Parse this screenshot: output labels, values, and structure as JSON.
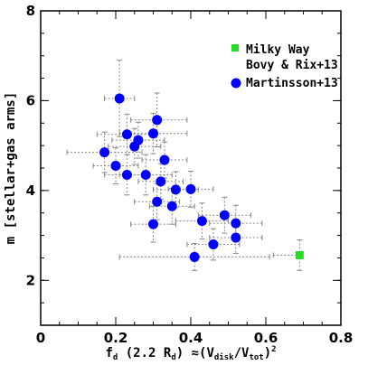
{
  "chart_data": {
    "type": "scatter",
    "xlim": [
      0,
      0.8
    ],
    "ylim": [
      1,
      8
    ],
    "x_ticks": [
      "0",
      "0.2",
      "0.4",
      "0.6",
      "0.8"
    ],
    "y_ticks": [
      "2",
      "4",
      "6",
      "8"
    ],
    "xlabel": {
      "prefix": "f",
      "prefix_sub": "d",
      "mid": " (2.2 R",
      "mid_sub": "d",
      "mid_end": ") ≈(V",
      "v1_sub": "disk",
      "slash": "/V",
      "v2_sub": "tot",
      "end": ")",
      "end_sup": "2"
    },
    "ylabel": "m [stellar+gas arms]",
    "grid": false,
    "legend_position": "top-right",
    "series": [
      {
        "name": "Milky Way",
        "name_line2": "Bovy & Rix+13",
        "marker": "square",
        "color": "#22dd22",
        "points": [
          {
            "x": 0.69,
            "y": 2.56,
            "xerr": [
              0.07,
              0.0
            ],
            "yerr": [
              0.34,
              0.34
            ]
          }
        ]
      },
      {
        "name": "Martinsson+13",
        "marker": "circle",
        "color": "#0000ff",
        "points": [
          {
            "x": 0.21,
            "y": 6.05,
            "xerr": [
              0.04,
              0.04
            ],
            "yerr": [
              0.85,
              0.85
            ]
          },
          {
            "x": 0.31,
            "y": 5.57,
            "xerr": [
              0.07,
              0.08
            ],
            "yerr": [
              0.6,
              0.6
            ]
          },
          {
            "x": 0.23,
            "y": 5.25,
            "xerr": [
              0.08,
              0.08
            ],
            "yerr": [
              0.45,
              0.45
            ]
          },
          {
            "x": 0.3,
            "y": 5.27,
            "xerr": [
              0.09,
              0.09
            ],
            "yerr": [
              0.45,
              0.45
            ]
          },
          {
            "x": 0.26,
            "y": 5.12,
            "xerr": [
              0.07,
              0.07
            ],
            "yerr": [
              0.4,
              0.4
            ]
          },
          {
            "x": 0.25,
            "y": 4.98,
            "xerr": [
              0.07,
              0.07
            ],
            "yerr": [
              0.4,
              0.4
            ]
          },
          {
            "x": 0.17,
            "y": 4.85,
            "xerr": [
              0.1,
              0.1
            ],
            "yerr": [
              0.45,
              0.45
            ]
          },
          {
            "x": 0.33,
            "y": 4.68,
            "xerr": [
              0.06,
              0.06
            ],
            "yerr": [
              0.4,
              0.4
            ]
          },
          {
            "x": 0.2,
            "y": 4.55,
            "xerr": [
              0.06,
              0.06
            ],
            "yerr": [
              0.4,
              0.4
            ]
          },
          {
            "x": 0.23,
            "y": 4.35,
            "xerr": [
              0.06,
              0.06
            ],
            "yerr": [
              0.45,
              0.45
            ]
          },
          {
            "x": 0.28,
            "y": 4.35,
            "xerr": [
              0.07,
              0.07
            ],
            "yerr": [
              0.45,
              0.45
            ]
          },
          {
            "x": 0.32,
            "y": 4.2,
            "xerr": [
              0.06,
              0.06
            ],
            "yerr": [
              0.4,
              0.4
            ]
          },
          {
            "x": 0.36,
            "y": 4.02,
            "xerr": [
              0.06,
              0.06
            ],
            "yerr": [
              0.4,
              0.4
            ]
          },
          {
            "x": 0.4,
            "y": 4.03,
            "xerr": [
              0.06,
              0.06
            ],
            "yerr": [
              0.4,
              0.4
            ]
          },
          {
            "x": 0.31,
            "y": 3.75,
            "xerr": [
              0.06,
              0.06
            ],
            "yerr": [
              0.4,
              0.4
            ]
          },
          {
            "x": 0.35,
            "y": 3.65,
            "xerr": [
              0.06,
              0.06
            ],
            "yerr": [
              0.4,
              0.4
            ]
          },
          {
            "x": 0.49,
            "y": 3.45,
            "xerr": [
              0.07,
              0.07
            ],
            "yerr": [
              0.4,
              0.4
            ]
          },
          {
            "x": 0.43,
            "y": 3.32,
            "xerr": [
              0.07,
              0.07
            ],
            "yerr": [
              0.4,
              0.4
            ]
          },
          {
            "x": 0.3,
            "y": 3.25,
            "xerr": [
              0.06,
              0.06
            ],
            "yerr": [
              0.4,
              0.4
            ]
          },
          {
            "x": 0.52,
            "y": 3.27,
            "xerr": [
              0.07,
              0.07
            ],
            "yerr": [
              0.4,
              0.4
            ]
          },
          {
            "x": 0.52,
            "y": 2.95,
            "xerr": [
              0.07,
              0.07
            ],
            "yerr": [
              0.35,
              0.35
            ]
          },
          {
            "x": 0.46,
            "y": 2.8,
            "xerr": [
              0.07,
              0.07
            ],
            "yerr": [
              0.35,
              0.35
            ]
          },
          {
            "x": 0.41,
            "y": 2.52,
            "xerr": [
              0.2,
              0.2
            ],
            "yerr": [
              0.3,
              0.3
            ]
          }
        ]
      }
    ]
  }
}
